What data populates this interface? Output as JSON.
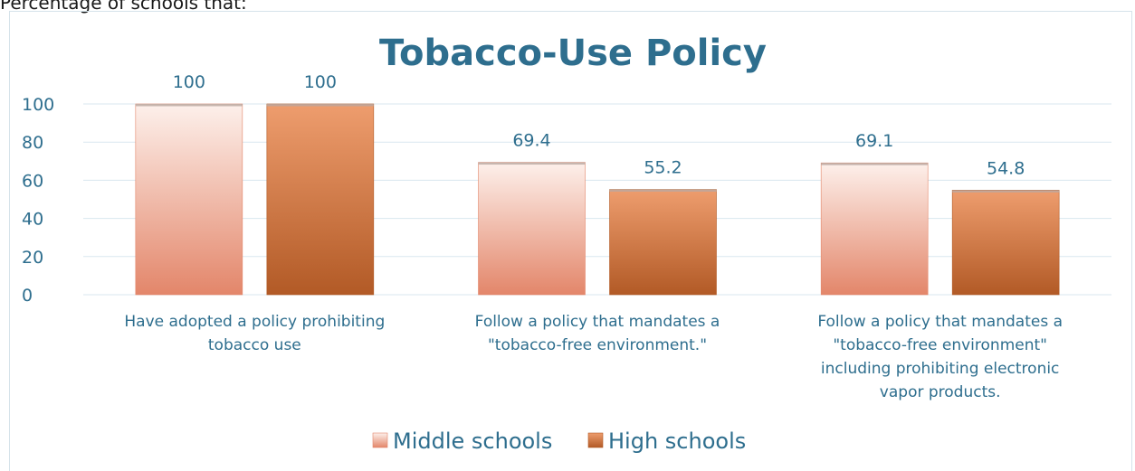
{
  "caption": "Percentage of schools that:",
  "colors": {
    "title": "#2e6e8e",
    "grid": "#d9e7ef",
    "middle_top": "#fdf0eb",
    "middle_bottom": "#e3866a",
    "high_top": "#ee9d6e",
    "high_bottom": "#b25a26"
  },
  "chart_data": {
    "type": "bar",
    "title": "Tobacco-Use Policy",
    "xlabel": "",
    "ylabel": "",
    "ylim": [
      0,
      100
    ],
    "yticks": [
      0,
      20,
      40,
      60,
      80,
      100
    ],
    "grid": true,
    "legend_position": "bottom",
    "categories": [
      [
        "Have adopted a policy prohibiting",
        "tobacco use"
      ],
      [
        "Follow a policy that mandates a",
        "\"tobacco-free environment.\""
      ],
      [
        "Follow a policy that mandates a",
        "\"tobacco-free environment\"",
        "including prohibiting electronic",
        "vapor products."
      ]
    ],
    "series": [
      {
        "name": "Middle schools",
        "values": [
          100,
          69.4,
          69.1
        ],
        "labels": [
          "100",
          "69.4",
          "69.1"
        ]
      },
      {
        "name": "High schools",
        "values": [
          100,
          55.2,
          54.8
        ],
        "labels": [
          "100",
          "55.2",
          "54.8"
        ]
      }
    ]
  }
}
